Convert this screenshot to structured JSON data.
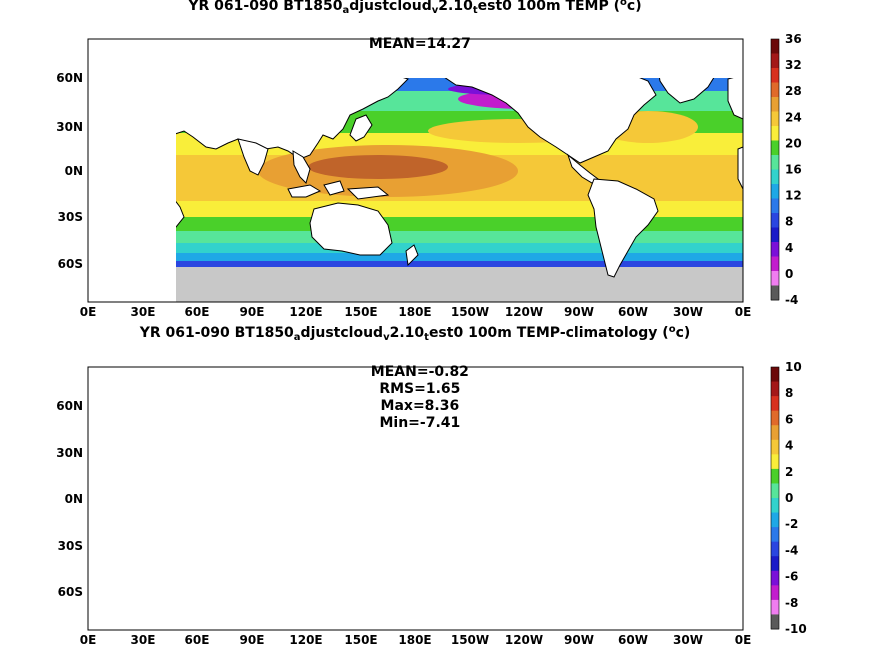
{
  "panels": [
    {
      "title_parts": [
        "YR 061-090 BT1850",
        "a",
        "djustcloud",
        "v",
        "2.10",
        "t",
        "est0 100m TEMP (",
        "o",
        "c)"
      ],
      "stats": [
        "MEAN=14.27"
      ],
      "colorbar": {
        "labels": [
          "36",
          "32",
          "28",
          "24",
          "20",
          "16",
          "12",
          "8",
          "4",
          "0",
          "-4"
        ],
        "colors": [
          "#6b0a0a",
          "#a31818",
          "#d8311f",
          "#e06a2a",
          "#e8a033",
          "#f5c838",
          "#f9ee3a",
          "#4ad02a",
          "#57e59a",
          "#32d2cc",
          "#1fa8e6",
          "#2b79ea",
          "#2a46e0",
          "#1b1bc8",
          "#7a10d8",
          "#c21ccd",
          "#f07df0",
          "#5a5a5a"
        ]
      }
    },
    {
      "title_parts": [
        "YR 061-090 BT1850",
        "a",
        "djustcloud",
        "v",
        "2.10",
        "t",
        "est0 100m TEMP-climatology (",
        "o",
        "c)"
      ],
      "stats": [
        "MEAN=-0.82",
        "RMS=1.65",
        "Max=8.36",
        "Min=-7.41"
      ],
      "colorbar": {
        "labels": [
          "10",
          "8",
          "6",
          "4",
          "2",
          "0",
          "-2",
          "-4",
          "-6",
          "-8",
          "-10"
        ],
        "colors": [
          "#6b0a0a",
          "#a31818",
          "#d8311f",
          "#e06a2a",
          "#e8a033",
          "#f5c838",
          "#f9ee3a",
          "#4ad02a",
          "#57e59a",
          "#32d2cc",
          "#1fa8e6",
          "#2b79ea",
          "#2a46e0",
          "#1b1bc8",
          "#7a10d8",
          "#c21ccd",
          "#f07df0",
          "#5a5a5a"
        ]
      }
    }
  ],
  "lat_labels": [
    "60N",
    "30N",
    "0N",
    "30S",
    "60S"
  ],
  "lon_labels": [
    "0E",
    "30E",
    "60E",
    "90E",
    "120E",
    "150E",
    "180E",
    "150W",
    "120W",
    "90W",
    "60W",
    "30W",
    "0E"
  ],
  "palette": {
    "land": "#ffffff",
    "ice": "#c8c8c8",
    "coast": "#000000"
  }
}
